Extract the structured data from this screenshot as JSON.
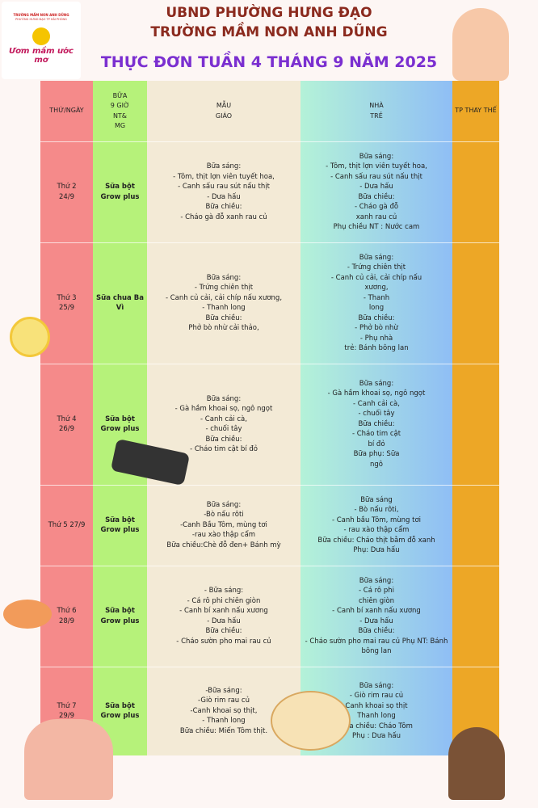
{
  "header": {
    "logo": {
      "school": "TRƯỜNG MẦM NON ANH DŨNG",
      "ward": "PHƯỜNG HƯNG ĐẠO TP HẢI PHÒNG",
      "slogan": "Ươm mầm ước mơ"
    },
    "line1": "UBND PHƯỜNG HƯNG ĐẠO",
    "line2": "TRƯỜNG MẦM NON ANH DŨNG",
    "title": "THỰC ĐƠN TUẦN  4 THÁNG 9  NĂM 2025"
  },
  "table": {
    "columns": [
      [
        "THỨ/NGÀY"
      ],
      [
        "BỮA",
        "9 GIỜ",
        "NT&",
        "MG"
      ],
      [
        "MẪU",
        "GIÁO"
      ],
      [
        "NHÀ",
        "TRẺ"
      ],
      [
        "TP THAY THẾ"
      ]
    ],
    "rows": [
      [
        [
          "Thứ 2",
          "24/9"
        ],
        [
          "Sữa bột",
          "Grow plus"
        ],
        [
          "Bữa sáng:",
          "- Tôm, thịt lợn viên tuyết hoa,",
          "- Canh sấu rau sút nấu thịt",
          "- Dưa hấu",
          "Bữa chiều:",
          "- Cháo gà đỗ xanh rau củ"
        ],
        [
          "Bữa sáng:",
          "-  Tôm, thịt lợn viên tuyết hoa,",
          "- Canh sấu rau sút nấu thịt",
          "- Dưa hấu",
          "Bữa chiều:",
          "- Cháo gà đỗ",
          "xanh rau củ",
          "Phụ chiều NT : Nước cam"
        ]
      ],
      [
        [
          "Thứ 3",
          "25/9"
        ],
        [
          "Sữa chua Ba Vì"
        ],
        [
          "Bữa sáng:",
          "- Trứng chiên thịt",
          "- Canh củ cải, cải chíp nấu xương,",
          "- Thanh long",
          "Bữa chiều:",
          "Phở bò nhừ cải thảo,"
        ],
        [
          "Bữa sáng:",
          "- Trứng chiên thịt",
          "- Canh củ cải, cải chíp nấu",
          "xương,",
          "- Thanh",
          "long",
          "Bữa chiều:",
          "- Phở bò nhừ",
          "- Phụ nhà",
          "trẻ: Bánh bông lan"
        ]
      ],
      [
        [
          "Thứ 4",
          "26/9"
        ],
        [
          "Sữa bột",
          "Grow plus"
        ],
        [
          "Bữa sáng:",
          "- Gà hầm khoai sọ, ngô ngọt",
          "- Canh cải cà,",
          "- chuối tây",
          "Bữa chiều:",
          "- Cháo tim cật bí đỏ"
        ],
        [
          "Bữa sáng:",
          "- Gà hầm khoai sọ, ngô ngọt",
          "- Canh cải cà,",
          "- chuối tây",
          "Bữa chiều:",
          "- Cháo tim cật",
          "bí đỏ",
          "Bữa phụ: Sữa",
          "ngô"
        ]
      ],
      [
        [
          "Thứ 5 27/9"
        ],
        [
          "Sữa bột",
          "Grow plus"
        ],
        [
          "Bữa sáng:",
          "-Bò nấu rôti",
          "-Canh Bầu Tôm, mùng tơi",
          "-rau xào thập cẩm",
          "Bữa chiều:Chè đỗ đen+ Bánh mỳ"
        ],
        [
          "Bữa sáng",
          "- Bò nấu rôti,",
          "- Canh bầu Tôm, mùng tơi",
          "- rau xào thập cẩm",
          "Bữa chiều: Cháo thịt bằm đỗ xanh",
          "Phụ: Dưa hấu"
        ]
      ],
      [
        [
          "Thứ 6",
          "28/9"
        ],
        [
          "Sữa bột",
          "Grow plus"
        ],
        [
          "- Bữa sáng:",
          "- Cá rô phi chiên giòn",
          "- Canh bí xanh nấu xương",
          "- Dưa hấu",
          "Bữa chiều:",
          "- Cháo sườn pho mai rau củ"
        ],
        [
          "Bữa sáng:",
          "- Cá rô phi",
          "chiên giòn",
          "- Canh bí xanh nấu xương",
          "- Dưa hấu",
          "Bữa chiều:",
          "- Cháo sườn pho mai rau củ Phụ  NT: Bánh",
          "bông lan"
        ]
      ],
      [
        [
          "Thứ 7",
          "29/9"
        ],
        [
          "Sữa bột",
          "Grow plus"
        ],
        [
          "-Bữa sáng:",
          "-Giò rim rau củ",
          "-Canh khoai sọ thịt,",
          "- Thanh long",
          "Bữa chiều: Miến Tôm thịt."
        ],
        [
          "Bữa sáng:",
          "- Giò rim rau củ",
          "Canh khoai sọ thịt",
          "Thanh long",
          "Bữa chiều: Cháo Tôm",
          "Phụ : Dưa hấu"
        ]
      ]
    ]
  }
}
